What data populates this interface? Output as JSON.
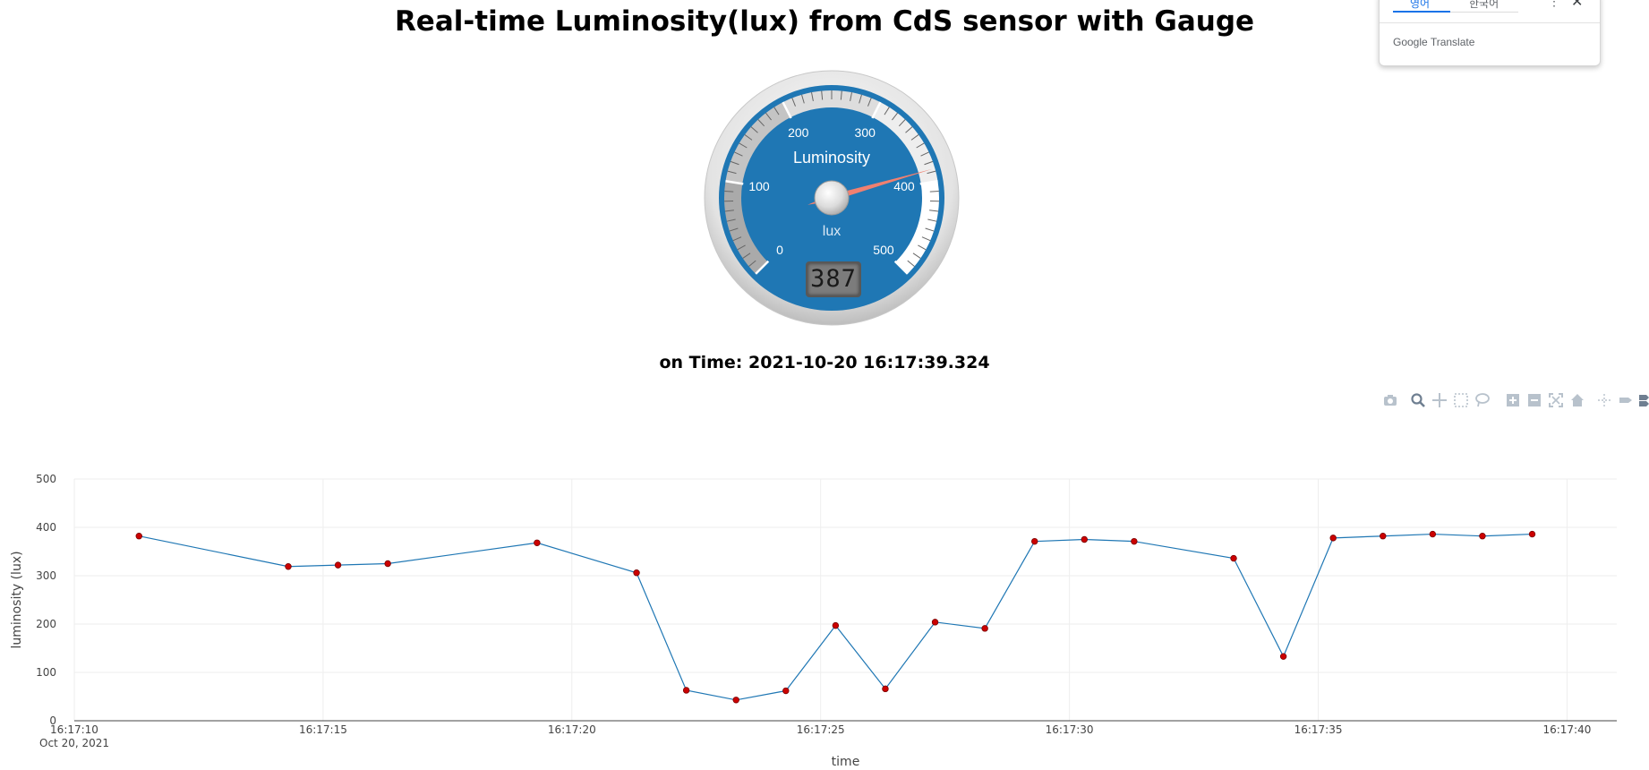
{
  "page": {
    "title": "Real-time Luminosity(lux) from CdS sensor with Gauge",
    "timestamp": "on Time: 2021-10-20 16:17:39.324"
  },
  "gauge": {
    "title": "Luminosity",
    "units": "lux",
    "value": 387,
    "value_display": "387",
    "min": 0,
    "max": 500,
    "major_ticks": [
      "0",
      "100",
      "200",
      "300",
      "400",
      "500"
    ],
    "colors": {
      "plate": "#1f77b4",
      "needle": "#f08070",
      "digit_bg": "#7c7c7c"
    }
  },
  "translate_popup": {
    "tab_1": "영어",
    "tab_2": "한국어",
    "menu_icon": "more-vert-icon",
    "close_icon": "close-icon",
    "brand_google": "Google",
    "brand_translate": "Translate"
  },
  "modebar": {
    "buttons": [
      "camera-icon",
      "zoom-icon",
      "pan-icon",
      "box-select-icon",
      "lasso-select-icon",
      "zoom-in-icon",
      "zoom-out-icon",
      "autoscale-icon",
      "reset-axes-icon",
      "spike-lines-icon",
      "hover-closest-icon",
      "hover-compare-icon"
    ]
  },
  "chart_data": {
    "type": "line",
    "xlabel": "time",
    "ylabel": "luminosity (lux)",
    "ylim": [
      0,
      500
    ],
    "yticks": [
      0,
      100,
      200,
      300,
      400,
      500
    ],
    "xlim": [
      "16:17:10",
      "16:17:41"
    ],
    "xticks": [
      "16:17:10",
      "16:17:15",
      "16:17:20",
      "16:17:25",
      "16:17:30",
      "16:17:35",
      "16:17:40"
    ],
    "xtick_date": "Oct 20, 2021",
    "grid": true,
    "series": [
      {
        "line_color": "#1f77b4",
        "marker_color": "#cc0000",
        "x": [
          "16:17:11.3",
          "16:17:14.3",
          "16:17:15.3",
          "16:17:16.3",
          "16:17:19.3",
          "16:17:21.3",
          "16:17:22.3",
          "16:17:23.3",
          "16:17:24.3",
          "16:17:25.3",
          "16:17:26.3",
          "16:17:27.3",
          "16:17:28.3",
          "16:17:29.3",
          "16:17:30.3",
          "16:17:31.3",
          "16:17:33.3",
          "16:17:34.3",
          "16:17:35.3",
          "16:17:36.3",
          "16:17:37.3",
          "16:17:38.3",
          "16:17:39.3"
        ],
        "y": [
          382,
          319,
          322,
          325,
          368,
          306,
          63,
          43,
          62,
          197,
          66,
          204,
          191,
          371,
          375,
          371,
          336,
          133,
          378,
          382,
          386,
          382,
          386
        ]
      }
    ]
  }
}
